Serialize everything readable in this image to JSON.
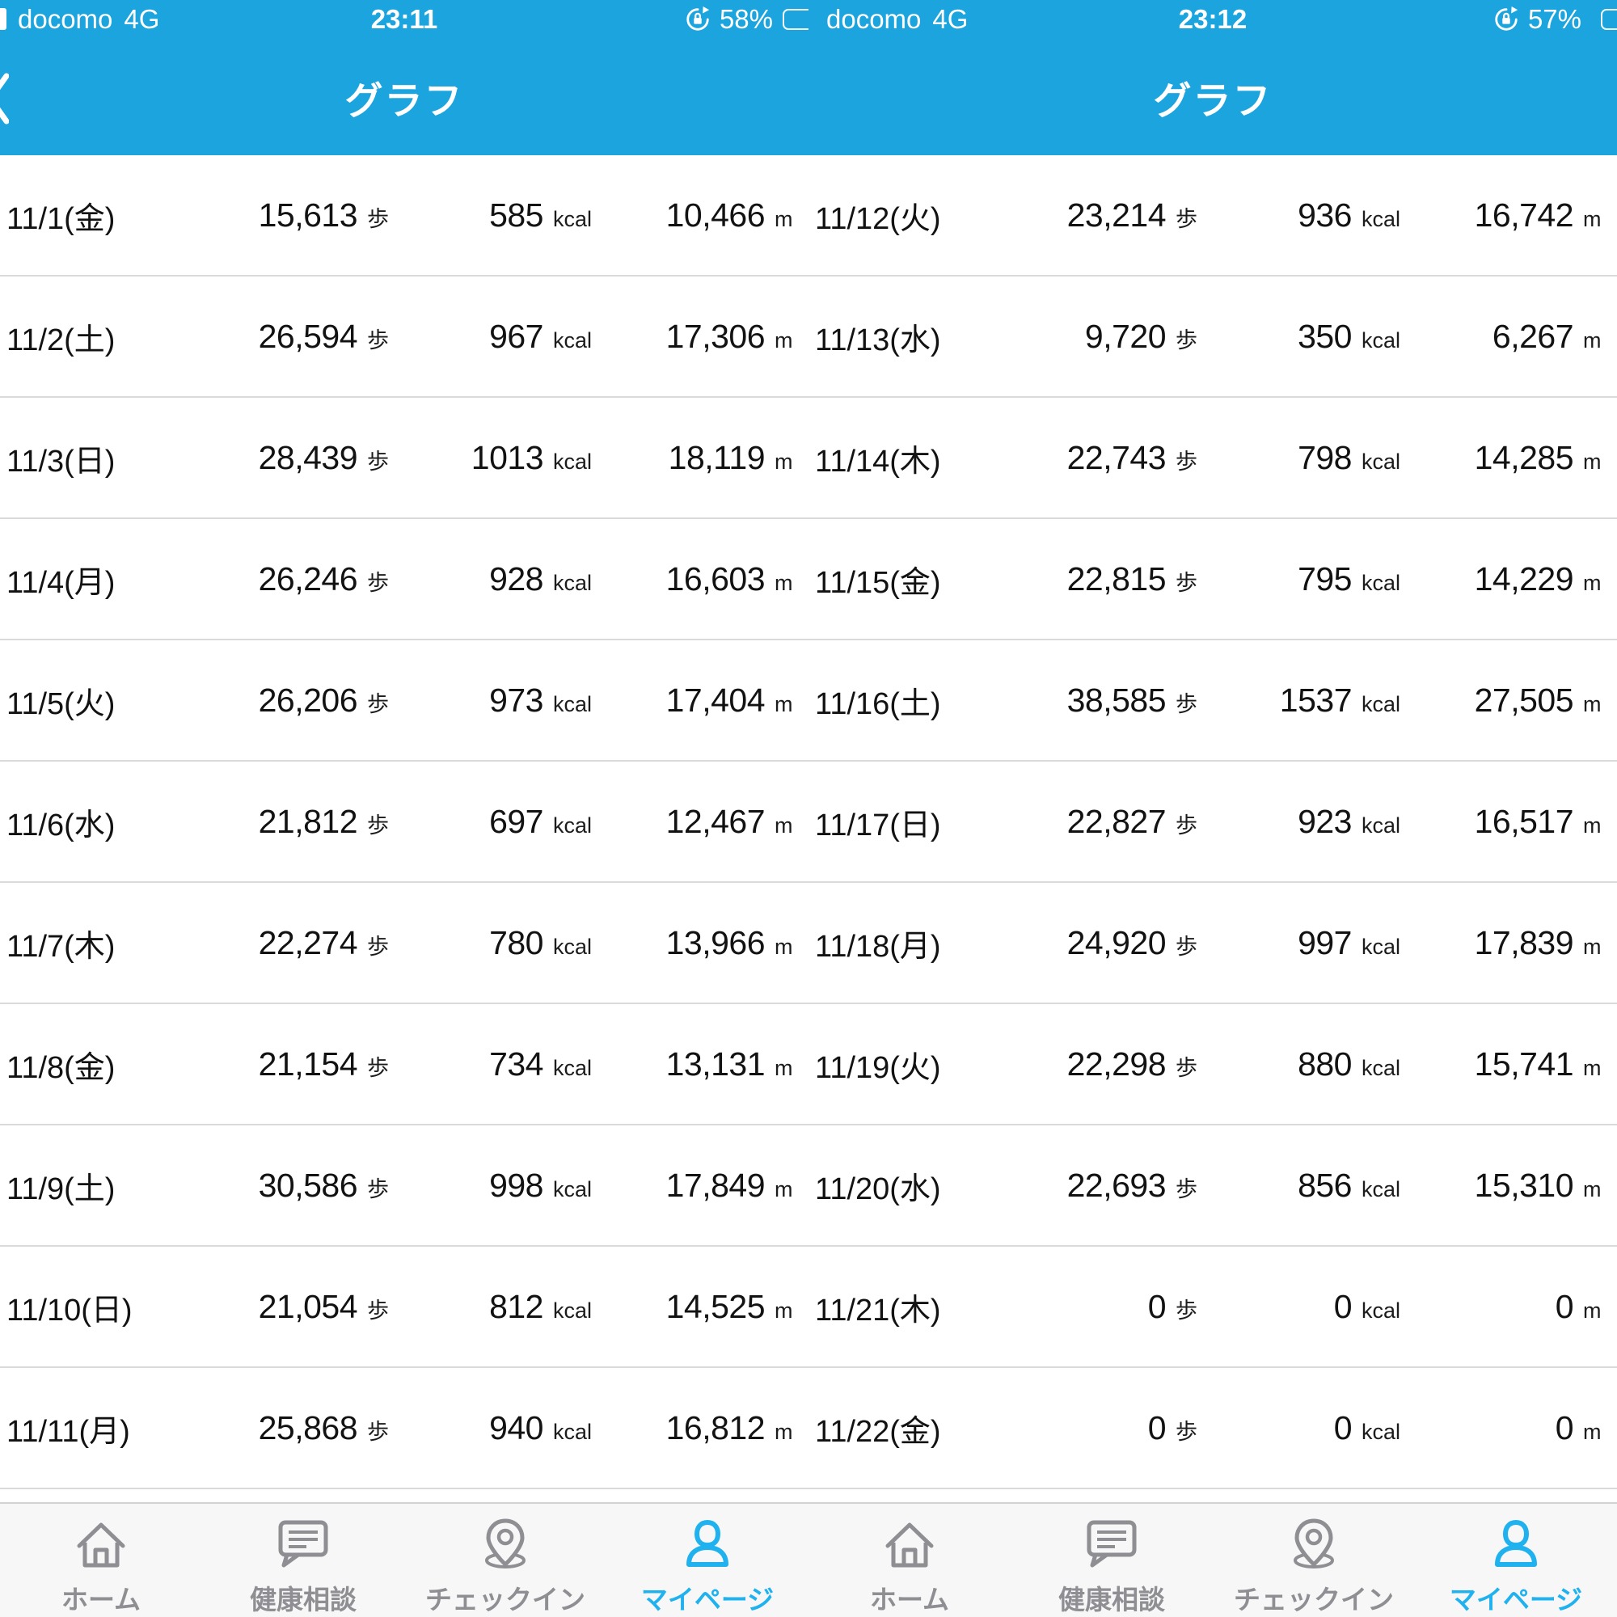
{
  "colors": {
    "header_blue": "#1BA4DD",
    "active_tab_blue": "#20B1EF",
    "inactive_tab_gray": "#8E8E93",
    "row_separator": "#DADADA",
    "tabbar_bg": "#F7F7F7",
    "row_text": "#121212"
  },
  "units": {
    "steps": "歩",
    "kcal": "kcal",
    "distance": "m"
  },
  "tabs": [
    {
      "label": "ホーム",
      "icon": "home-icon",
      "active": false
    },
    {
      "label": "健康相談",
      "icon": "chat-icon",
      "active": false
    },
    {
      "label": "チェックイン",
      "icon": "checkin-pin-icon",
      "active": false
    },
    {
      "label": "マイページ",
      "icon": "person-icon",
      "active": true
    }
  ],
  "halves": [
    {
      "status": {
        "carrier": "docomo",
        "network": "4G",
        "time": "23:11",
        "battery": "58%"
      },
      "nav_title": "グラフ",
      "rows": [
        {
          "date": "11/1(金)",
          "steps": "15,613",
          "kcal": "585",
          "distance": "10,466"
        },
        {
          "date": "11/2(土)",
          "steps": "26,594",
          "kcal": "967",
          "distance": "17,306"
        },
        {
          "date": "11/3(日)",
          "steps": "28,439",
          "kcal": "1013",
          "distance": "18,119"
        },
        {
          "date": "11/4(月)",
          "steps": "26,246",
          "kcal": "928",
          "distance": "16,603"
        },
        {
          "date": "11/5(火)",
          "steps": "26,206",
          "kcal": "973",
          "distance": "17,404"
        },
        {
          "date": "11/6(水)",
          "steps": "21,812",
          "kcal": "697",
          "distance": "12,467"
        },
        {
          "date": "11/7(木)",
          "steps": "22,274",
          "kcal": "780",
          "distance": "13,966"
        },
        {
          "date": "11/8(金)",
          "steps": "21,154",
          "kcal": "734",
          "distance": "13,131"
        },
        {
          "date": "11/9(土)",
          "steps": "30,586",
          "kcal": "998",
          "distance": "17,849"
        },
        {
          "date": "11/10(日)",
          "steps": "21,054",
          "kcal": "812",
          "distance": "14,525"
        },
        {
          "date": "11/11(月)",
          "steps": "25,868",
          "kcal": "940",
          "distance": "16,812"
        }
      ]
    },
    {
      "status": {
        "carrier": "docomo",
        "network": "4G",
        "time": "23:12",
        "battery": "57%"
      },
      "nav_title": "グラフ",
      "rows": [
        {
          "date": "11/12(火)",
          "steps": "23,214",
          "kcal": "936",
          "distance": "16,742"
        },
        {
          "date": "11/13(水)",
          "steps": "9,720",
          "kcal": "350",
          "distance": "6,267"
        },
        {
          "date": "11/14(木)",
          "steps": "22,743",
          "kcal": "798",
          "distance": "14,285"
        },
        {
          "date": "11/15(金)",
          "steps": "22,815",
          "kcal": "795",
          "distance": "14,229"
        },
        {
          "date": "11/16(土)",
          "steps": "38,585",
          "kcal": "1537",
          "distance": "27,505"
        },
        {
          "date": "11/17(日)",
          "steps": "22,827",
          "kcal": "923",
          "distance": "16,517"
        },
        {
          "date": "11/18(月)",
          "steps": "24,920",
          "kcal": "997",
          "distance": "17,839"
        },
        {
          "date": "11/19(火)",
          "steps": "22,298",
          "kcal": "880",
          "distance": "15,741"
        },
        {
          "date": "11/20(水)",
          "steps": "22,693",
          "kcal": "856",
          "distance": "15,310"
        },
        {
          "date": "11/21(木)",
          "steps": "0",
          "kcal": "0",
          "distance": "0"
        },
        {
          "date": "11/22(金)",
          "steps": "0",
          "kcal": "0",
          "distance": "0"
        }
      ]
    }
  ]
}
